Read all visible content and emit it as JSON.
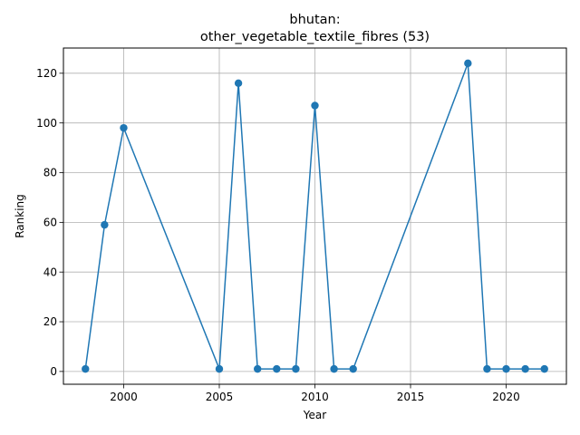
{
  "chart_data": {
    "type": "line",
    "title_line1": "bhutan:",
    "title_line2": "other_vegetable_textile_fibres (53)",
    "xlabel": "Year",
    "ylabel": "Ranking",
    "xlim": [
      1996.85,
      2023.15
    ],
    "ylim": [
      -5.15,
      130.15
    ],
    "x_ticks": [
      2000,
      2005,
      2010,
      2015,
      2020
    ],
    "y_ticks": [
      0,
      20,
      40,
      60,
      80,
      100,
      120
    ],
    "grid": true,
    "series": [
      {
        "color": "#1f77b4",
        "marker": "circle",
        "x": [
          1998,
          1999,
          2000,
          2005,
          2006,
          2007,
          2008,
          2009,
          2010,
          2011,
          2012,
          2018,
          2019,
          2020,
          2021,
          2022
        ],
        "y": [
          1,
          59,
          98,
          1,
          116,
          1,
          1,
          1,
          107,
          1,
          1,
          124,
          1,
          1,
          1,
          1
        ]
      }
    ]
  }
}
